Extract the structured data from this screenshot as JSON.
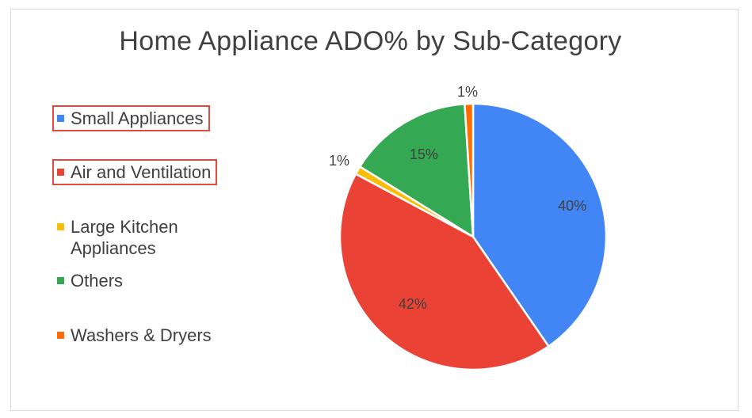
{
  "chart_data": {
    "type": "pie",
    "title": "Home Appliance ADO% by Sub-Category",
    "legend_position": "left",
    "slices": [
      {
        "label": "Small Appliances",
        "value": 40,
        "display": "40%",
        "color": "#4285f4",
        "legend_highlighted": true
      },
      {
        "label": "Air and Ventilation",
        "value": 42,
        "display": "42%",
        "color": "#ea4335",
        "legend_highlighted": true
      },
      {
        "label": "Large Kitchen Appliances",
        "value": 1,
        "display": "1%",
        "color": "#fbbc04",
        "legend_highlighted": false
      },
      {
        "label": "Others",
        "value": 15,
        "display": "15%",
        "color": "#34a853",
        "legend_highlighted": false
      },
      {
        "label": "Washers & Dryers",
        "value": 1,
        "display": "1%",
        "color": "#ff6d01",
        "legend_highlighted": false
      }
    ]
  }
}
